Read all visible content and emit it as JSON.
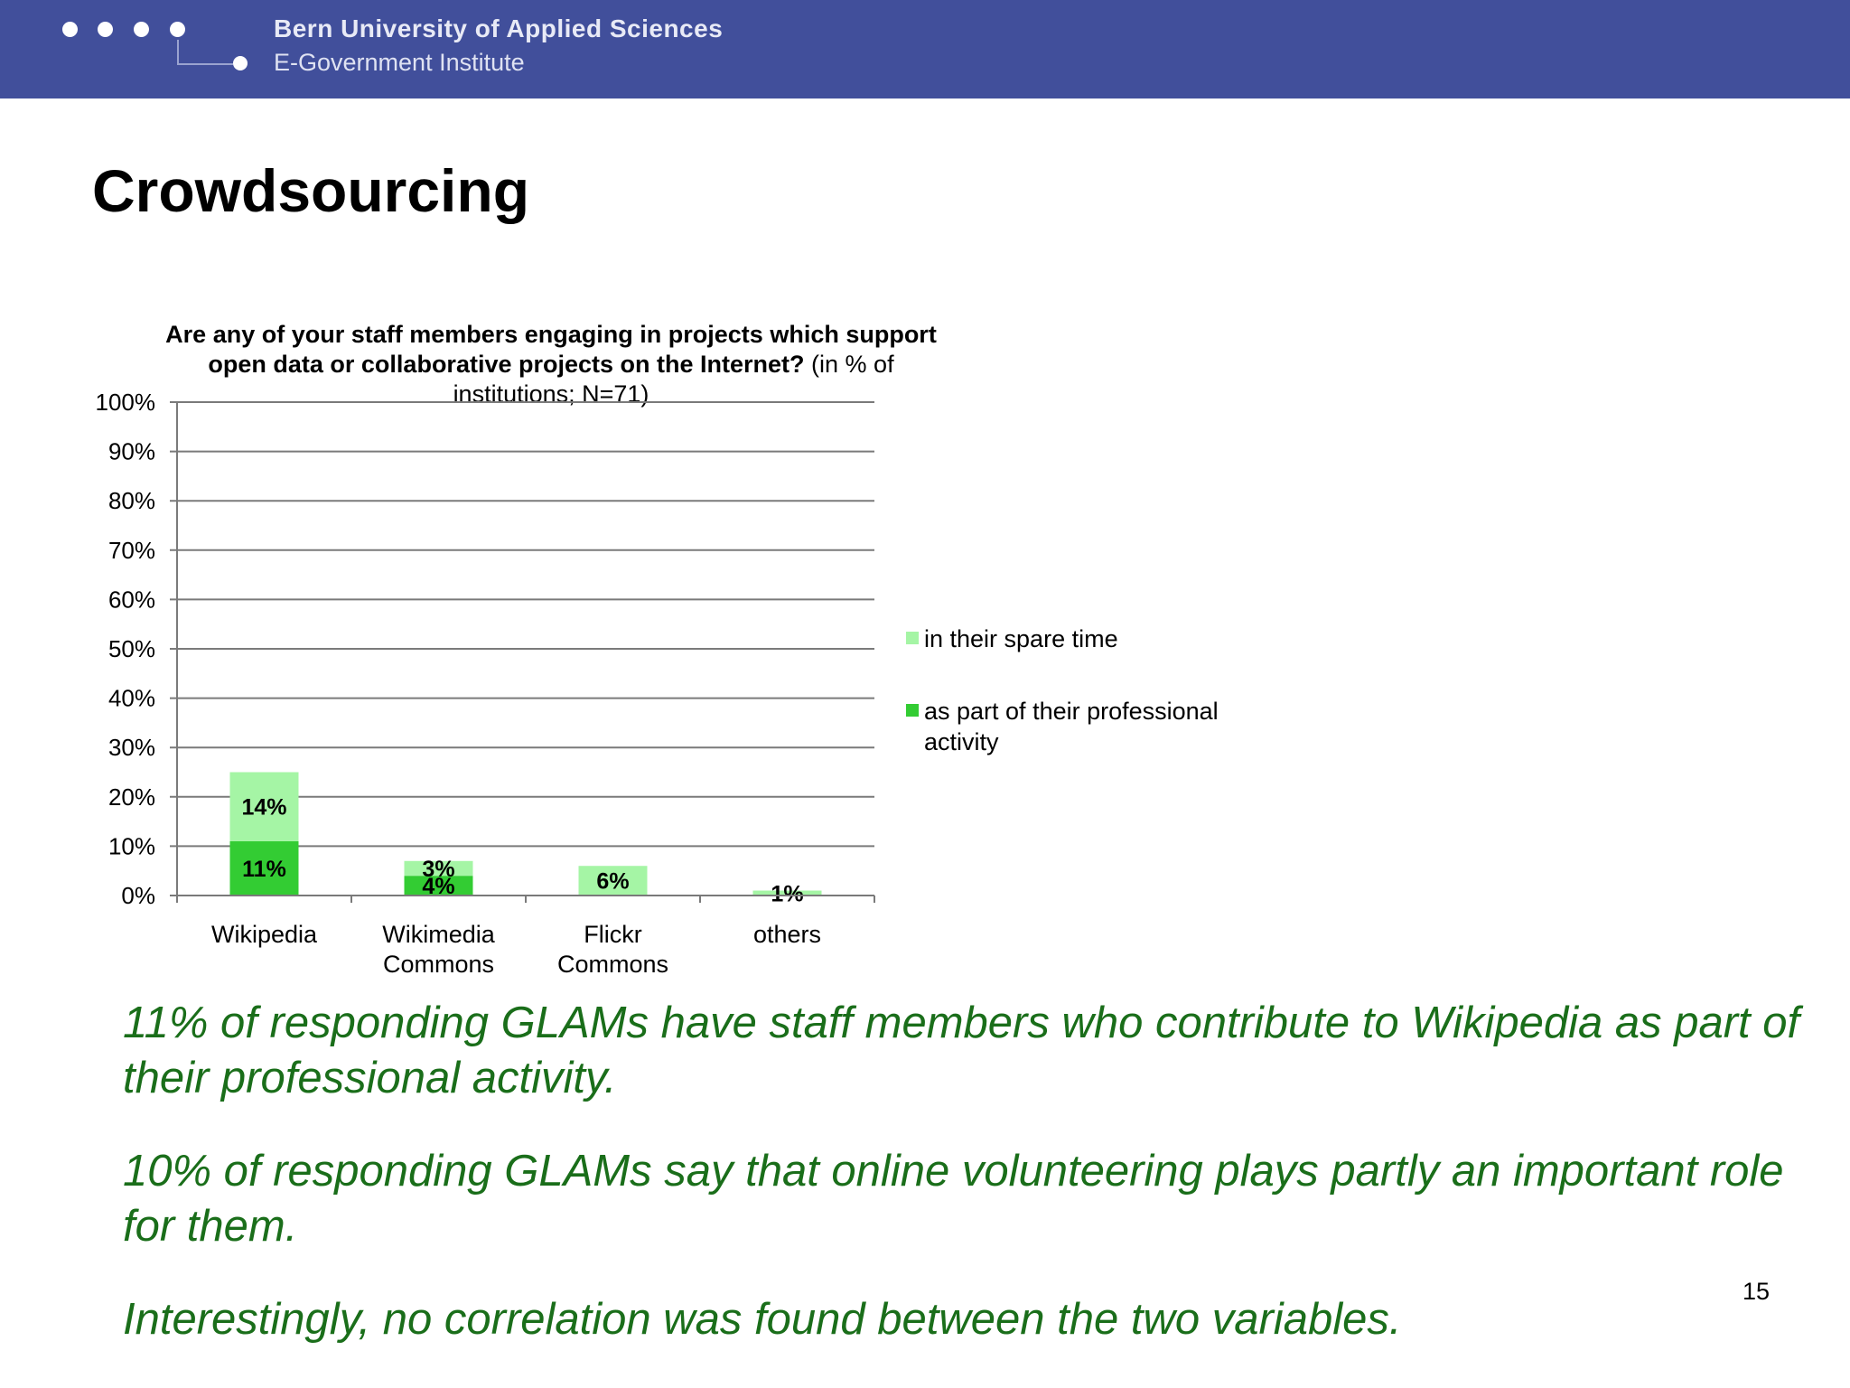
{
  "header": {
    "university": "Bern University of Applied Sciences",
    "institute": "E-Government Institute",
    "background_color": "#414f9b"
  },
  "slide": {
    "title": "Crowdsourcing",
    "page_number": "15"
  },
  "chart_title": {
    "question": "Are any of your staff members engaging in projects which support open data or collaborative projects on the Internet?",
    "note": "(in % of institutions; N=71)"
  },
  "chart_data": {
    "type": "bar",
    "stacked": true,
    "categories": [
      "Wikipedia",
      "Wikimedia Commons",
      "Flickr Commons",
      "others"
    ],
    "category_lines": [
      [
        "Wikipedia"
      ],
      [
        "Wikimedia",
        "Commons"
      ],
      [
        "Flickr",
        "Commons"
      ],
      [
        "others"
      ]
    ],
    "series": [
      {
        "name": "as part of their professional activity",
        "values": [
          11,
          4,
          0,
          0
        ],
        "color": "#33cc33"
      },
      {
        "name": "in their spare time",
        "values": [
          14,
          3,
          6,
          1
        ],
        "color": "#a5f5a5"
      }
    ],
    "data_labels": [
      [
        "11%",
        "4%",
        null,
        null
      ],
      [
        "14%",
        "3%",
        "6%",
        "1%"
      ]
    ],
    "y_ticks": [
      "0%",
      "10%",
      "20%",
      "30%",
      "40%",
      "50%",
      "60%",
      "70%",
      "80%",
      "90%",
      "100%"
    ],
    "ylim": [
      0,
      100
    ],
    "grid": true,
    "legend_position": "right"
  },
  "legend": {
    "items": [
      {
        "label": "in their spare time",
        "color": "#a5f5a5"
      },
      {
        "label": "as part of their professional activity",
        "color": "#33cc33"
      }
    ]
  },
  "findings": [
    "11% of responding GLAMs have staff members who contribute to Wikipedia as part of their professional activity.",
    "10% of responding GLAMs say that online volunteering plays partly an important role for them.",
    "Interestingly, no correlation was found between the two variables."
  ],
  "colors": {
    "finding_text": "#1a6e1a"
  }
}
